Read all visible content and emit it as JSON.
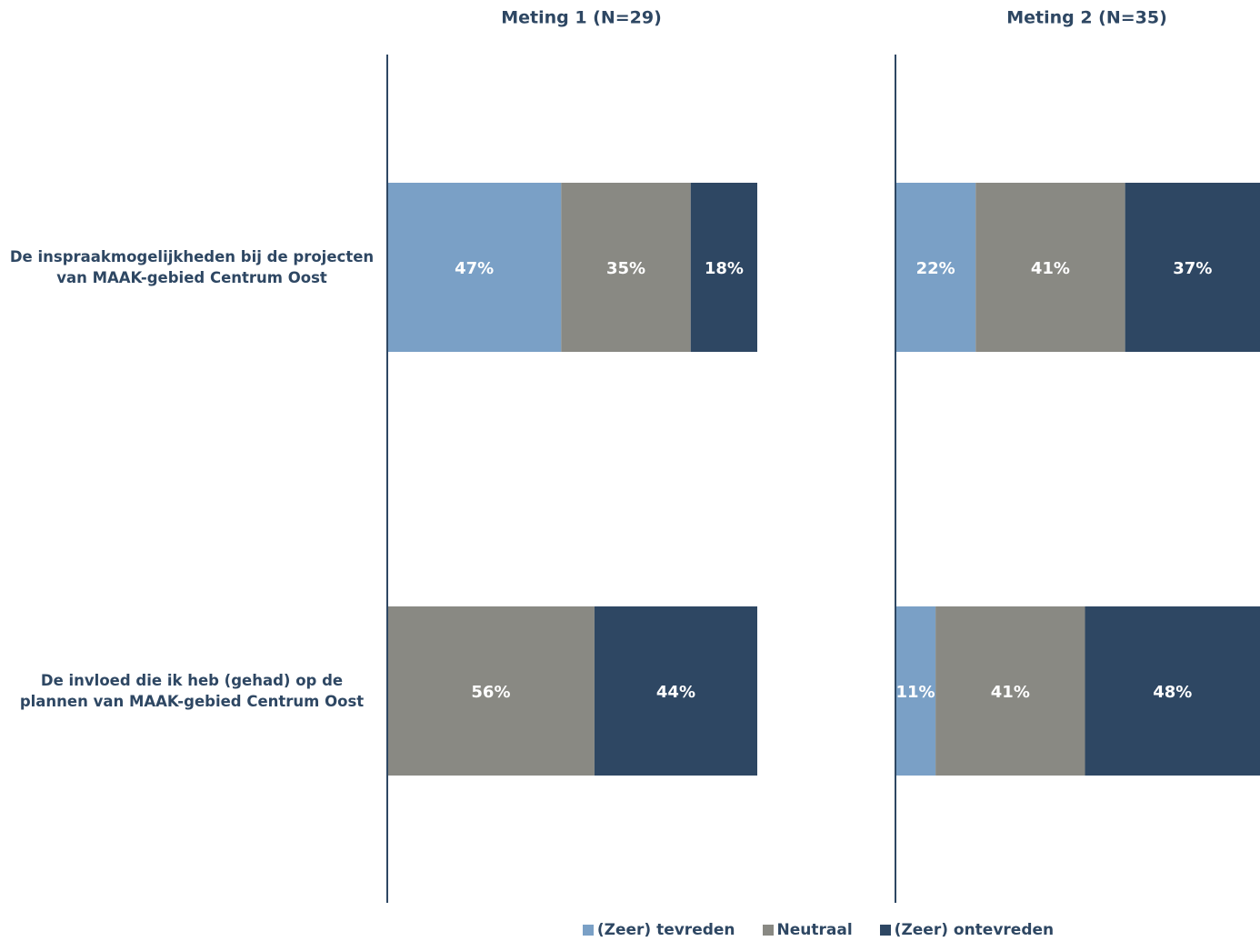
{
  "chart_data": {
    "type": "bar",
    "orientation": "horizontal",
    "stacked": true,
    "categories": [
      "De inspraakmogelijkheden bij de projecten van  MAAK-gebied Centrum Oost",
      "De invloed die ik heb (gehad) op de plannen van MAAK-gebied Centrum Oost"
    ],
    "series": [
      {
        "name": "(Zeer) tevreden",
        "color": "#7aa0c6"
      },
      {
        "name": "Neutraal",
        "color": "#898983"
      },
      {
        "name": "(Zeer) ontevreden",
        "color": "#2e4763"
      }
    ],
    "xlim": [
      0,
      100
    ],
    "legend": "bottom",
    "panels": [
      {
        "title": "Meting 1 (N=29)",
        "values": [
          [
            47,
            null
          ],
          [
            35,
            56
          ],
          [
            18,
            44
          ]
        ],
        "value_labels": [
          [
            "47%",
            null
          ],
          [
            "35%",
            "56%"
          ],
          [
            "18%",
            "44%"
          ]
        ]
      },
      {
        "title": "Meting 2 (N=35)",
        "values": [
          [
            22,
            11
          ],
          [
            41,
            41
          ],
          [
            37,
            48
          ]
        ],
        "value_labels": [
          [
            "22%",
            "11%"
          ],
          [
            "41%",
            "41%"
          ],
          [
            "37%",
            "48%"
          ]
        ]
      }
    ]
  }
}
